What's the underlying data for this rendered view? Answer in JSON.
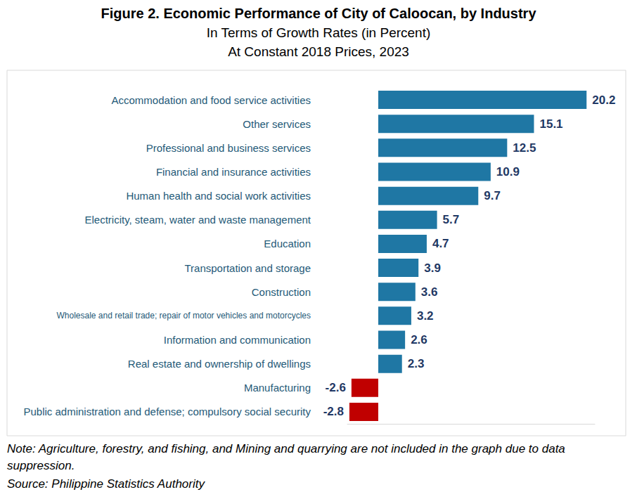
{
  "chart_data": {
    "type": "bar",
    "title": "Figure 2. Economic Performance of City of Caloocan, by Industry",
    "subtitle": [
      "In Terms of Growth Rates (in Percent)",
      "At Constant 2018 Prices, 2023"
    ],
    "orientation": "horizontal",
    "categories": [
      "Accommodation and food service activities",
      "Other services",
      "Professional and business services",
      "Financial and insurance activities",
      "Human health and social work activities",
      "Electricity, steam, water and waste management",
      "Education",
      "Transportation and storage",
      "Construction",
      "Wholesale and retail trade; repair of motor vehicles and motorcycles",
      "Information and communication",
      "Real estate and ownership of dwellings",
      "Manufacturing",
      "Public administration and defense; compulsory social security"
    ],
    "values": [
      20.2,
      15.1,
      12.5,
      10.9,
      9.7,
      5.7,
      4.7,
      3.9,
      3.6,
      3.2,
      2.6,
      2.3,
      -2.6,
      -2.8
    ],
    "colors": [
      "#1f77a4",
      "#1f77a4",
      "#1f77a4",
      "#1f77a4",
      "#1f77a4",
      "#1f77a4",
      "#1f77a4",
      "#1f77a4",
      "#1f77a4",
      "#1f77a4",
      "#1f77a4",
      "#1f77a4",
      "#c00000",
      "#c00000"
    ],
    "xlim": [
      -3,
      21
    ],
    "xticks": [],
    "grid": false,
    "data_labels": true,
    "tick_labels": "y",
    "annotations": [
      "Note: Agriculture, forestry, and fishing, and Mining and quarrying are not included in the graph due to data suppression.",
      "Source: Philippine Statistics Authority"
    ]
  }
}
